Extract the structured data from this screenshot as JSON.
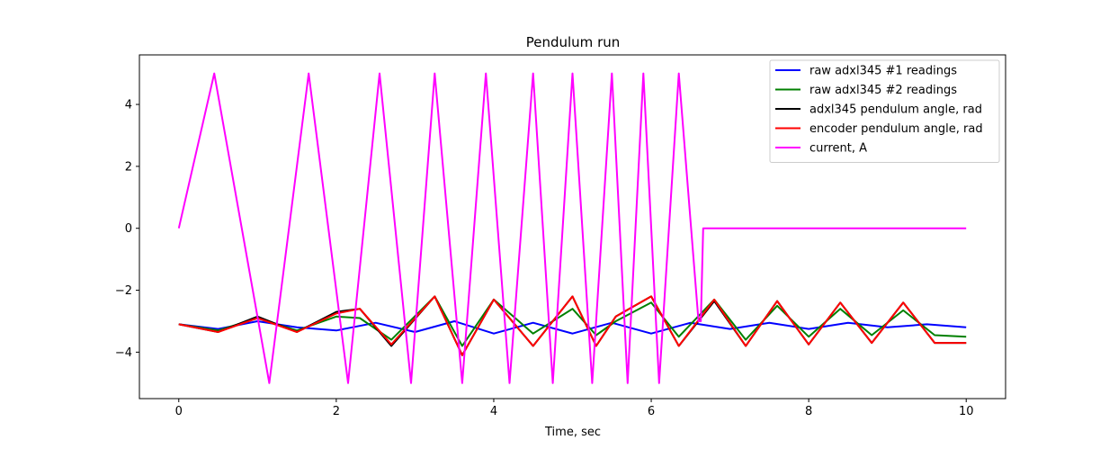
{
  "chart_data": {
    "type": "line",
    "title": "Pendulum run",
    "xlabel": "Time, sec",
    "ylabel": "",
    "xlim": [
      -0.5,
      10.5
    ],
    "ylim": [
      -5.5,
      5.6
    ],
    "xticks": [
      0,
      2,
      4,
      6,
      8,
      10
    ],
    "xtick_labels": [
      "0",
      "2",
      "4",
      "6",
      "8",
      "10"
    ],
    "yticks": [
      -4,
      -2,
      0,
      2,
      4
    ],
    "ytick_labels": [
      "−4",
      "−2",
      "0",
      "2",
      "4"
    ],
    "grid": false,
    "legend_position": "top-right",
    "series": [
      {
        "name": "raw adxl345 #1 readings",
        "color": "#0000ff",
        "x": [
          0,
          0.5,
          1.0,
          1.5,
          2.0,
          2.5,
          3.0,
          3.5,
          4.0,
          4.5,
          5.0,
          5.5,
          6.0,
          6.5,
          7.0,
          7.5,
          8.0,
          8.5,
          9.0,
          9.5,
          10.0
        ],
        "y": [
          -3.1,
          -3.25,
          -3.0,
          -3.2,
          -3.3,
          -3.05,
          -3.35,
          -3.0,
          -3.4,
          -3.05,
          -3.4,
          -3.05,
          -3.4,
          -3.05,
          -3.25,
          -3.05,
          -3.25,
          -3.05,
          -3.2,
          -3.1,
          -3.2
        ]
      },
      {
        "name": "raw adxl345 #2 readings",
        "color": "#008000",
        "x": [
          0,
          0.5,
          1.0,
          1.5,
          2.0,
          2.3,
          2.7,
          3.25,
          3.6,
          4.0,
          4.5,
          5.0,
          5.3,
          5.55,
          6.0,
          6.35,
          6.8,
          7.2,
          7.6,
          8.0,
          8.4,
          8.8,
          9.2,
          9.6,
          10.0
        ],
        "y": [
          -3.1,
          -3.3,
          -2.9,
          -3.3,
          -2.85,
          -2.9,
          -3.6,
          -2.2,
          -3.8,
          -2.3,
          -3.4,
          -2.6,
          -3.45,
          -3.0,
          -2.4,
          -3.5,
          -2.3,
          -3.6,
          -2.5,
          -3.5,
          -2.6,
          -3.45,
          -2.65,
          -3.45,
          -3.5
        ]
      },
      {
        "name": "adxl345 pendulum angle, rad",
        "color": "#000000",
        "x": [
          0,
          0.5,
          1.0,
          1.5,
          2.0,
          2.3,
          2.7,
          3.25,
          3.6,
          4.0,
          4.5,
          5.0,
          5.3,
          5.55,
          6.0,
          6.35,
          6.8,
          7.2,
          7.6,
          8.0,
          8.4,
          8.8,
          9.2,
          9.6,
          10.0
        ],
        "y": [
          -3.1,
          -3.35,
          -2.85,
          -3.35,
          -2.7,
          -2.6,
          -3.8,
          -2.2,
          -4.1,
          -2.3,
          -3.8,
          -2.2,
          -3.8,
          -2.85,
          -2.2,
          -3.8,
          -2.35,
          -3.8,
          -2.35,
          -3.75,
          -2.4,
          -3.7,
          -2.4,
          -3.7,
          -3.7
        ]
      },
      {
        "name": "encoder pendulum angle, rad",
        "color": "#ff0000",
        "x": [
          0,
          0.5,
          1.0,
          1.5,
          2.0,
          2.3,
          2.7,
          3.25,
          3.6,
          4.0,
          4.5,
          5.0,
          5.3,
          5.55,
          6.0,
          6.35,
          6.8,
          7.2,
          7.6,
          8.0,
          8.4,
          8.8,
          9.2,
          9.6,
          10.0
        ],
        "y": [
          -3.1,
          -3.35,
          -2.9,
          -3.35,
          -2.75,
          -2.6,
          -3.75,
          -2.2,
          -4.1,
          -2.3,
          -3.8,
          -2.2,
          -3.8,
          -2.85,
          -2.2,
          -3.8,
          -2.3,
          -3.8,
          -2.35,
          -3.75,
          -2.4,
          -3.7,
          -2.4,
          -3.7,
          -3.7
        ]
      },
      {
        "name": "current, A",
        "color": "#ff00ff",
        "x": [
          0,
          0.45,
          1.15,
          1.65,
          2.15,
          2.55,
          2.95,
          3.25,
          3.6,
          3.9,
          4.2,
          4.5,
          4.75,
          5.0,
          5.25,
          5.5,
          5.7,
          5.9,
          6.1,
          6.35,
          6.6,
          6.63,
          6.66,
          10.0
        ],
        "y": [
          0,
          5.0,
          -5.0,
          5.0,
          -5.0,
          5.0,
          -5.0,
          5.0,
          -5.0,
          5.0,
          -5.0,
          5.0,
          -5.0,
          5.0,
          -5.0,
          5.0,
          -5.0,
          5.0,
          -5.0,
          5.0,
          -3.0,
          -3.0,
          0,
          0
        ]
      }
    ]
  }
}
